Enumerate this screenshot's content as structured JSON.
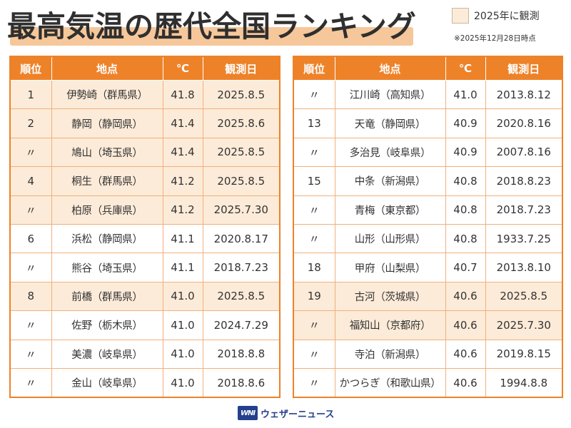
{
  "title": "最高気温の歴代全国ランキング",
  "legend": {
    "label": "2025年に観測",
    "highlight_color": "#fcebd8"
  },
  "as_of": "※2025年12月28日時点",
  "accent_color": "#ee8229",
  "columns": [
    "順位",
    "地点",
    "℃",
    "観測日"
  ],
  "left_rows": [
    {
      "rank": "1",
      "location": "伊勢崎（群馬県）",
      "temp": "41.8",
      "date": "2025.8.5",
      "observed_2025": true
    },
    {
      "rank": "2",
      "location": "静岡（静岡県）",
      "temp": "41.4",
      "date": "2025.8.6",
      "observed_2025": true
    },
    {
      "rank": "〃",
      "location": "鳩山（埼玉県）",
      "temp": "41.4",
      "date": "2025.8.5",
      "observed_2025": true
    },
    {
      "rank": "4",
      "location": "桐生（群馬県）",
      "temp": "41.2",
      "date": "2025.8.5",
      "observed_2025": true
    },
    {
      "rank": "〃",
      "location": "柏原（兵庫県）",
      "temp": "41.2",
      "date": "2025.7.30",
      "observed_2025": true
    },
    {
      "rank": "6",
      "location": "浜松（静岡県）",
      "temp": "41.1",
      "date": "2020.8.17",
      "observed_2025": false
    },
    {
      "rank": "〃",
      "location": "熊谷（埼玉県）",
      "temp": "41.1",
      "date": "2018.7.23",
      "observed_2025": false
    },
    {
      "rank": "8",
      "location": "前橋（群馬県）",
      "temp": "41.0",
      "date": "2025.8.5",
      "observed_2025": true
    },
    {
      "rank": "〃",
      "location": "佐野（栃木県）",
      "temp": "41.0",
      "date": "2024.7.29",
      "observed_2025": false
    },
    {
      "rank": "〃",
      "location": "美濃（岐阜県）",
      "temp": "41.0",
      "date": "2018.8.8",
      "observed_2025": false
    },
    {
      "rank": "〃",
      "location": "金山（岐阜県）",
      "temp": "41.0",
      "date": "2018.8.6",
      "observed_2025": false
    }
  ],
  "right_rows": [
    {
      "rank": "〃",
      "location": "江川崎（高知県）",
      "temp": "41.0",
      "date": "2013.8.12",
      "observed_2025": false
    },
    {
      "rank": "13",
      "location": "天竜（静岡県）",
      "temp": "40.9",
      "date": "2020.8.16",
      "observed_2025": false
    },
    {
      "rank": "〃",
      "location": "多治見（岐阜県）",
      "temp": "40.9",
      "date": "2007.8.16",
      "observed_2025": false
    },
    {
      "rank": "15",
      "location": "中条（新潟県）",
      "temp": "40.8",
      "date": "2018.8.23",
      "observed_2025": false
    },
    {
      "rank": "〃",
      "location": "青梅（東京都）",
      "temp": "40.8",
      "date": "2018.7.23",
      "observed_2025": false
    },
    {
      "rank": "〃",
      "location": "山形（山形県）",
      "temp": "40.8",
      "date": "1933.7.25",
      "observed_2025": false
    },
    {
      "rank": "18",
      "location": "甲府（山梨県）",
      "temp": "40.7",
      "date": "2013.8.10",
      "observed_2025": false
    },
    {
      "rank": "19",
      "location": "古河（茨城県）",
      "temp": "40.6",
      "date": "2025.8.5",
      "observed_2025": true
    },
    {
      "rank": "〃",
      "location": "福知山（京都府）",
      "temp": "40.6",
      "date": "2025.7.30",
      "observed_2025": true
    },
    {
      "rank": "〃",
      "location": "寺泊（新潟県）",
      "temp": "40.6",
      "date": "2019.8.15",
      "observed_2025": false
    },
    {
      "rank": "〃",
      "location": "かつらぎ（和歌山県）",
      "temp": "40.6",
      "date": "1994.8.8",
      "observed_2025": false
    }
  ],
  "brand": {
    "logo": "WNI",
    "name": "ウェザーニュース"
  }
}
